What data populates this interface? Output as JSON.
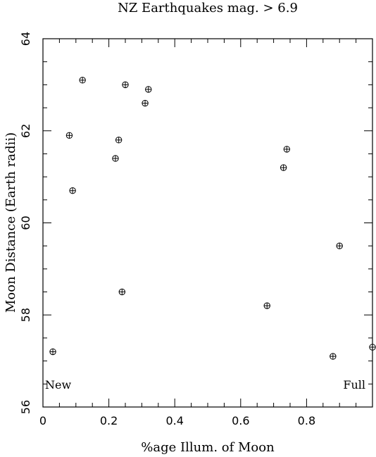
{
  "chart_data": {
    "type": "scatter",
    "title": "NZ Earthquakes mag. > 6.9",
    "xlabel": "%age Illum. of Moon",
    "ylabel": "Moon Distance (Earth radii)",
    "xlim": [
      0,
      1.0
    ],
    "ylim": [
      56,
      64
    ],
    "x_ticks": [
      0,
      0.2,
      0.4,
      0.6,
      0.8
    ],
    "x_tick_labels": [
      "0",
      "0.2",
      "0.4",
      "0.6",
      "0.8"
    ],
    "y_ticks": [
      56,
      58,
      60,
      62,
      64
    ],
    "y_tick_labels": [
      "56",
      "58",
      "60",
      "62",
      "64"
    ],
    "grid": false,
    "annotations": [
      {
        "text": "New",
        "position": "bottom-left"
      },
      {
        "text": "Full",
        "position": "bottom-right"
      }
    ],
    "series": [
      {
        "marker": "circle-plus",
        "points": [
          {
            "x": 0.03,
            "y": 57.2
          },
          {
            "x": 0.08,
            "y": 61.9
          },
          {
            "x": 0.09,
            "y": 60.7
          },
          {
            "x": 0.12,
            "y": 63.1
          },
          {
            "x": 0.22,
            "y": 61.4
          },
          {
            "x": 0.23,
            "y": 61.8
          },
          {
            "x": 0.24,
            "y": 58.5
          },
          {
            "x": 0.25,
            "y": 63.0
          },
          {
            "x": 0.31,
            "y": 62.6
          },
          {
            "x": 0.32,
            "y": 62.9
          },
          {
            "x": 0.68,
            "y": 58.2
          },
          {
            "x": 0.73,
            "y": 61.2
          },
          {
            "x": 0.74,
            "y": 61.6
          },
          {
            "x": 0.88,
            "y": 57.1
          },
          {
            "x": 0.9,
            "y": 59.5
          },
          {
            "x": 1.0,
            "y": 57.3
          }
        ]
      }
    ]
  }
}
